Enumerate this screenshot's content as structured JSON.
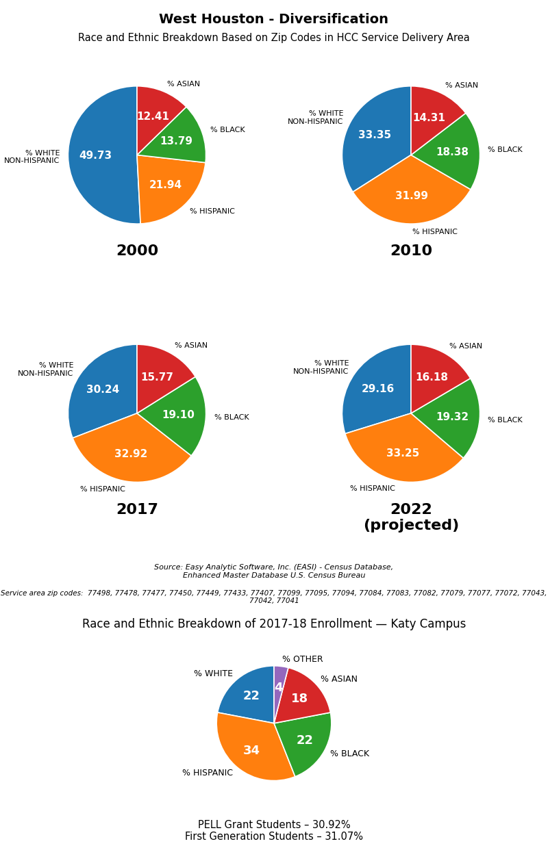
{
  "title": "West Houston - Diversification",
  "subtitle": "Race and Ethnic Breakdown Based on Zip Codes in HCC Service Delivery Area",
  "annotations": [
    "Source: Easy Analytic Software, Inc. (EASI) - Census Database,\nEnhanced Master Database U.S. Census Bureau",
    "Service area zip codes:  77498, 77478, 77477, 77450, 77449, 77433, 77407, 77099, 77095, 77094, 77084, 77083, 77082, 77079, 77077, 77072, 77043, 77042, 77041"
  ],
  "chart_data": [
    {
      "type": "pie",
      "title": "2000",
      "categories": [
        "% WHITE\nNON-HISPANIC",
        "% HISPANIC",
        "% BLACK",
        "% ASIAN"
      ],
      "values": [
        49.73,
        21.94,
        13.79,
        12.41
      ],
      "value_labels": [
        "49.73",
        "21.94",
        "13.79",
        "12.41"
      ],
      "data_labels": true
    },
    {
      "type": "pie",
      "title": "2010",
      "categories": [
        "% WHITE\nNON-HISPANIC",
        "% HISPANIC",
        "% BLACK",
        "% ASIAN"
      ],
      "values": [
        33.35,
        31.99,
        18.38,
        14.31
      ],
      "value_labels": [
        "33.35",
        "31.99",
        "18.38",
        "14.31"
      ],
      "data_labels": true
    },
    {
      "type": "pie",
      "title": "2017",
      "categories": [
        "% WHITE\nNON-HISPANIC",
        "% HISPANIC",
        "% BLACK",
        "% ASIAN"
      ],
      "values": [
        30.24,
        32.92,
        19.1,
        15.77
      ],
      "value_labels": [
        "30.24",
        "32.92",
        "19.10",
        "15.77"
      ],
      "data_labels": true
    },
    {
      "type": "pie",
      "title": "2022\n(projected)",
      "categories": [
        "% WHITE\nNON-HISPANIC",
        "% HISPANIC",
        "% BLACK",
        "% ASIAN"
      ],
      "values": [
        29.16,
        33.25,
        19.32,
        16.18
      ],
      "value_labels": [
        "29.16",
        "33.25",
        "19.32",
        "16.18"
      ],
      "data_labels": true
    },
    {
      "type": "pie",
      "title": "Race and Ethnic Breakdown of 2017-18 Enrollment — Katy Campus",
      "categories": [
        "% WHITE",
        "% HISPANIC",
        "% BLACK",
        "% ASIAN",
        "% OTHER"
      ],
      "values": [
        22,
        34,
        22,
        18,
        4
      ],
      "value_labels": [
        "22",
        "34",
        "22",
        "18",
        "4"
      ],
      "data_labels": true,
      "annotations": [
        "PELL Grant Students – 30.92%\nFirst Generation Students – 31.07%"
      ]
    }
  ]
}
